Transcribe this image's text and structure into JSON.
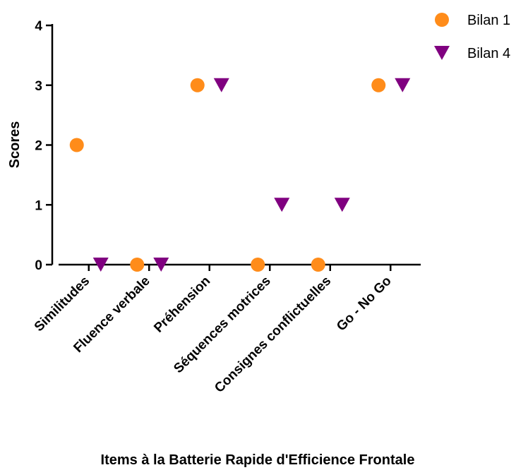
{
  "chart_data": {
    "type": "scatter",
    "title": "",
    "xlabel": "Items à la Batterie Rapide d'Efficience Frontale",
    "ylabel": "Scores",
    "categories": [
      "Similitudes",
      "Fluence verbale",
      "Préhension",
      "Séquences motrices",
      "Consignes conflictuelles",
      "Go - No Go"
    ],
    "yticks": [
      "0",
      "1",
      "2",
      "3",
      "4"
    ],
    "ylim": [
      0,
      4
    ],
    "grid": false,
    "legend_position": "top-right",
    "series": [
      {
        "name": "Bilan 1",
        "marker": "circle",
        "color": "#FF8C1A",
        "values": [
          2,
          0,
          3,
          0,
          0,
          3
        ]
      },
      {
        "name": "Bilan 4",
        "marker": "triangle-down",
        "color": "#800080",
        "values": [
          0,
          0,
          3,
          1,
          1,
          3
        ]
      }
    ]
  }
}
